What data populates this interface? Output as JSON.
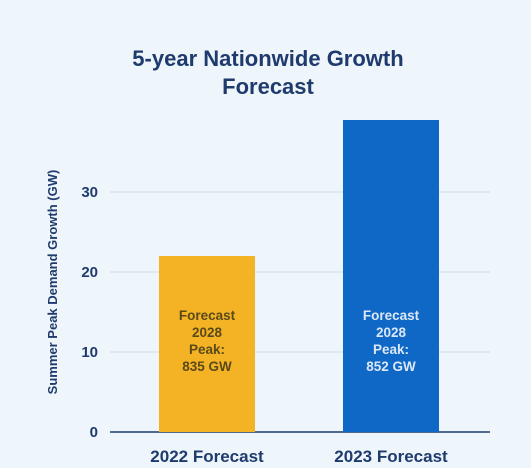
{
  "chart_data": {
    "type": "bar",
    "title": [
      "5-year Nationwide Growth",
      "Forecast"
    ],
    "ylabel": "Summer Peak Demand Growth (GW)",
    "xlabel": "",
    "categories": [
      "2022 Forecast",
      "2023 Forecast"
    ],
    "values": [
      22,
      39
    ],
    "ylim": [
      0,
      40
    ],
    "yticks": [
      0,
      10,
      20,
      30
    ],
    "grid": true,
    "colors": [
      "#f4b324",
      "#0f67c6"
    ],
    "bar_label_colors": [
      "#5a4a1a",
      "#dce8f7"
    ],
    "bar_labels": [
      [
        "Forecast",
        "2028",
        "Peak:",
        "835 GW"
      ],
      [
        "Forecast",
        "2028",
        "Peak:",
        "852 GW"
      ]
    ],
    "axis_color": "#1f3b6e",
    "grid_color": "#cfdcea",
    "background": "#eef5fb"
  }
}
